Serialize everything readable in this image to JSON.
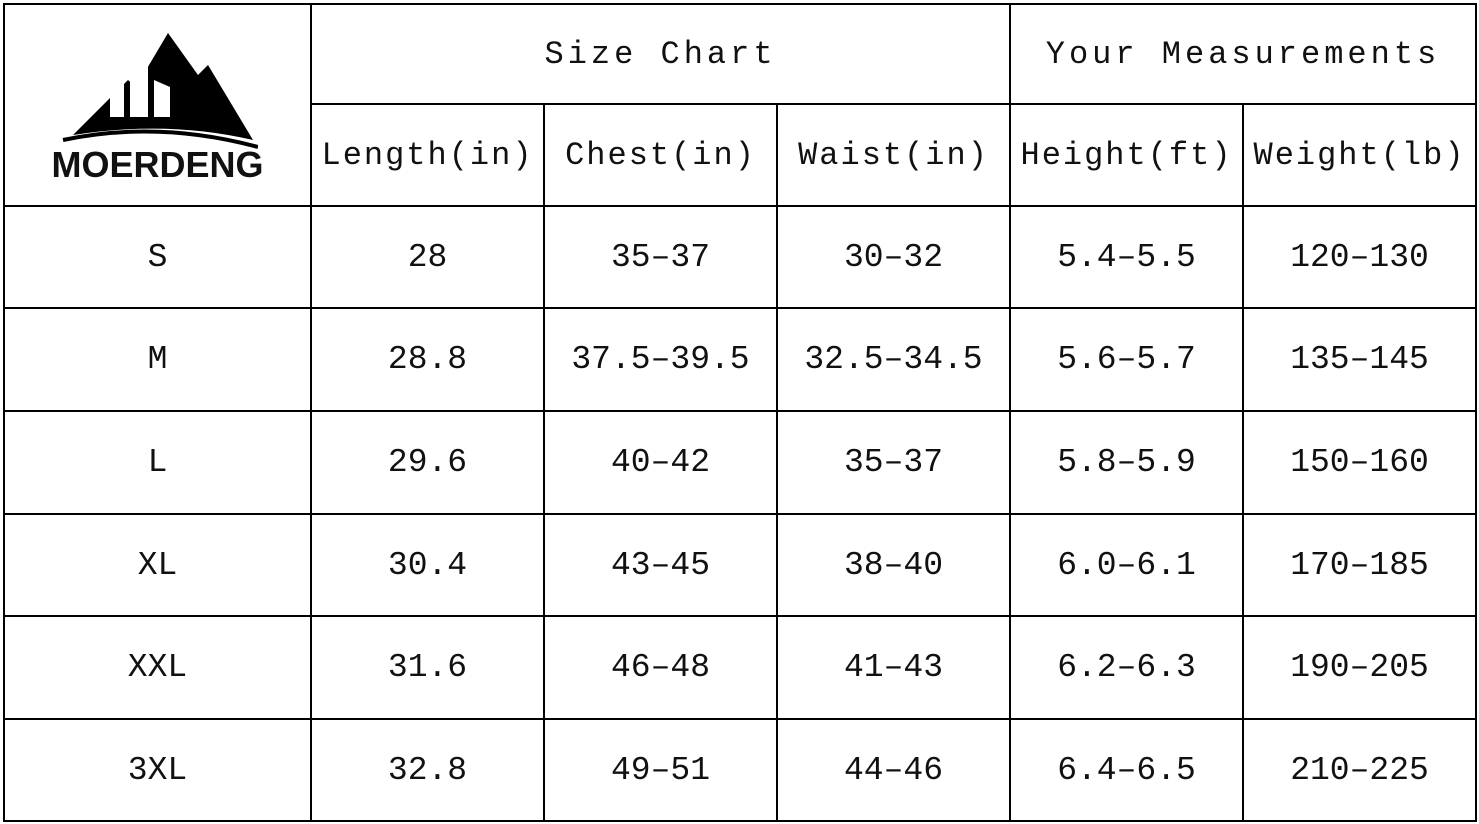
{
  "header": {
    "brand": "MOERDENG",
    "groups": [
      "Size Chart",
      "Your Measurements"
    ],
    "columns": [
      "Length(in)",
      "Chest(in)",
      "Waist(in)",
      "Height(ft)",
      "Weight(lb)"
    ]
  },
  "table": {
    "rows": [
      [
        "S",
        "28",
        "35–37",
        "30–32",
        "5.4–5.5",
        "120–130"
      ],
      [
        "M",
        "28.8",
        "37.5–39.5",
        "32.5–34.5",
        "5.6–5.7",
        "135–145"
      ],
      [
        "L",
        "29.6",
        "40–42",
        "35–37",
        "5.8–5.9",
        "150–160"
      ],
      [
        "XL",
        "30.4",
        "43–45",
        "38–40",
        "6.0–6.1",
        "170–185"
      ],
      [
        "XXL",
        "31.6",
        "46–48",
        "41–43",
        "6.2–6.3",
        "190–205"
      ],
      [
        "3XL",
        "32.8",
        "49–51",
        "44–46",
        "6.4–6.5",
        "210–225"
      ]
    ]
  }
}
